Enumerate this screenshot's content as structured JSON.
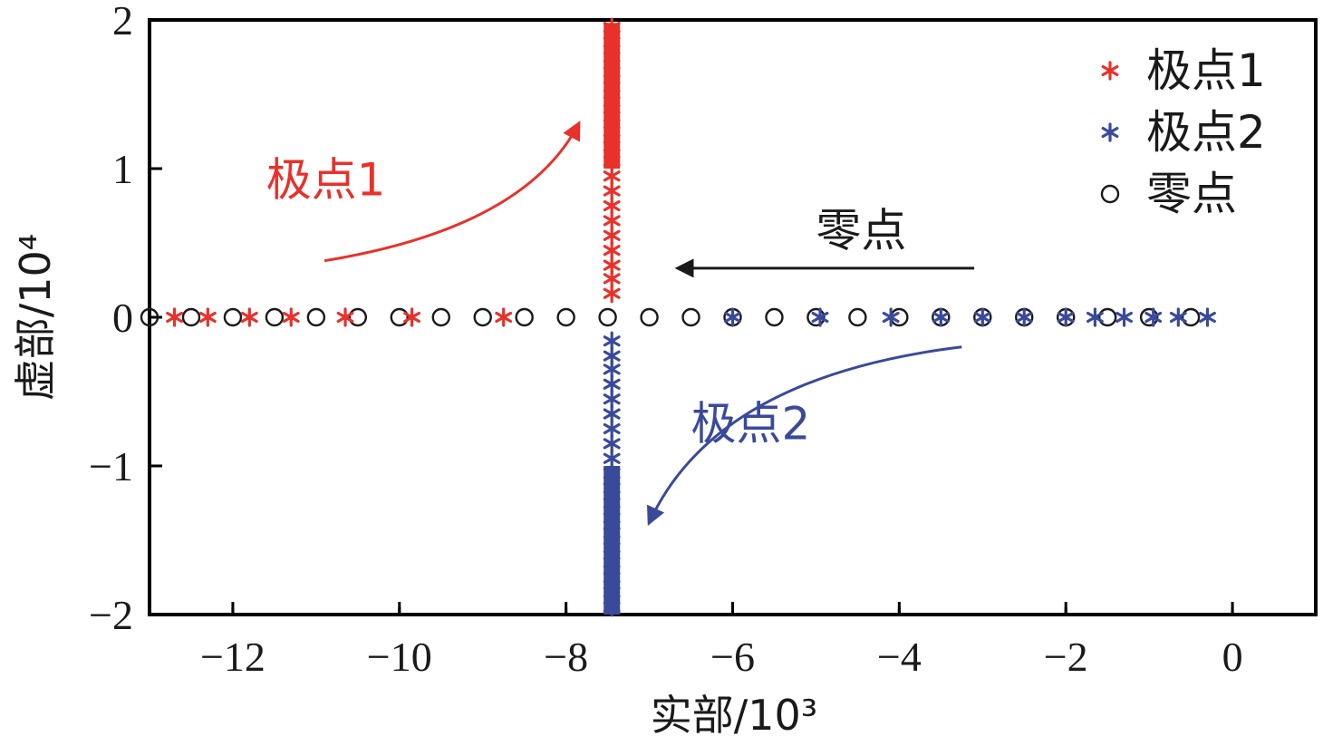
{
  "chart_data": {
    "type": "scatter",
    "xlabel": "实部/10³",
    "ylabel": "虚部/10⁴",
    "xlim": [
      -13,
      1
    ],
    "ylim": [
      -2,
      2
    ],
    "x_ticks": [
      {
        "value": -12,
        "label": "−12"
      },
      {
        "value": -10,
        "label": "−10"
      },
      {
        "value": -8,
        "label": "−8"
      },
      {
        "value": -6,
        "label": "−6"
      },
      {
        "value": -4,
        "label": "−4"
      },
      {
        "value": -2,
        "label": "−2"
      },
      {
        "value": 0,
        "label": "0"
      }
    ],
    "y_ticks": [
      {
        "value": -2,
        "label": "−2"
      },
      {
        "value": -1,
        "label": "−1"
      },
      {
        "value": 0,
        "label": "0"
      },
      {
        "value": 1,
        "label": "1"
      },
      {
        "value": 2,
        "label": "2"
      }
    ],
    "legend_position": "top-right",
    "series": [
      {
        "name": "极点1",
        "marker": "asterisk",
        "color": "#e8312b",
        "points": [
          {
            "x": -12.7,
            "y": 0
          },
          {
            "x": -12.3,
            "y": 0
          },
          {
            "x": -11.8,
            "y": 0
          },
          {
            "x": -11.3,
            "y": 0
          },
          {
            "x": -10.65,
            "y": 0
          },
          {
            "x": -9.85,
            "y": 0
          },
          {
            "x": -8.75,
            "y": 0
          },
          {
            "x": -7.45,
            "y": 0.16
          },
          {
            "x": -7.45,
            "y": 0.26
          },
          {
            "x": -7.45,
            "y": 0.35
          },
          {
            "x": -7.45,
            "y": 0.45
          },
          {
            "x": -7.45,
            "y": 0.55
          },
          {
            "x": -7.45,
            "y": 0.65
          },
          {
            "x": -7.45,
            "y": 0.75
          },
          {
            "x": -7.45,
            "y": 0.85
          },
          {
            "x": -7.45,
            "y": 0.95
          },
          {
            "x": -7.45,
            "y": 1.05
          },
          {
            "x": -7.45,
            "y": 1.15
          },
          {
            "x": -7.45,
            "y": 1.25
          },
          {
            "x": -7.45,
            "y": 1.35
          },
          {
            "x": -7.45,
            "y": 1.45
          },
          {
            "x": -7.45,
            "y": 1.55
          },
          {
            "x": -7.45,
            "y": 1.65
          },
          {
            "x": -7.45,
            "y": 1.75
          },
          {
            "x": -7.45,
            "y": 1.85
          },
          {
            "x": -7.45,
            "y": 1.95
          }
        ]
      },
      {
        "name": "极点2",
        "marker": "asterisk",
        "color": "#3a4a9a",
        "points": [
          {
            "x": -6.0,
            "y": 0
          },
          {
            "x": -4.95,
            "y": 0
          },
          {
            "x": -4.1,
            "y": 0
          },
          {
            "x": -3.5,
            "y": 0
          },
          {
            "x": -3.0,
            "y": 0
          },
          {
            "x": -2.5,
            "y": 0
          },
          {
            "x": -2.0,
            "y": 0
          },
          {
            "x": -1.65,
            "y": 0
          },
          {
            "x": -1.3,
            "y": 0
          },
          {
            "x": -0.95,
            "y": 0
          },
          {
            "x": -0.65,
            "y": 0
          },
          {
            "x": -0.3,
            "y": 0
          },
          {
            "x": -7.45,
            "y": -0.16
          },
          {
            "x": -7.45,
            "y": -0.26
          },
          {
            "x": -7.45,
            "y": -0.35
          },
          {
            "x": -7.45,
            "y": -0.45
          },
          {
            "x": -7.45,
            "y": -0.55
          },
          {
            "x": -7.45,
            "y": -0.65
          },
          {
            "x": -7.45,
            "y": -0.75
          },
          {
            "x": -7.45,
            "y": -0.85
          },
          {
            "x": -7.45,
            "y": -0.95
          },
          {
            "x": -7.45,
            "y": -1.05
          },
          {
            "x": -7.45,
            "y": -1.15
          },
          {
            "x": -7.45,
            "y": -1.25
          },
          {
            "x": -7.45,
            "y": -1.35
          },
          {
            "x": -7.45,
            "y": -1.45
          },
          {
            "x": -7.45,
            "y": -1.55
          },
          {
            "x": -7.45,
            "y": -1.65
          },
          {
            "x": -7.45,
            "y": -1.75
          },
          {
            "x": -7.45,
            "y": -1.85
          },
          {
            "x": -7.45,
            "y": -1.95
          }
        ]
      },
      {
        "name": "零点",
        "marker": "circle",
        "color": "#1a1a1a",
        "points": [
          {
            "x": -13.0,
            "y": 0
          },
          {
            "x": -12.5,
            "y": 0
          },
          {
            "x": -12.0,
            "y": 0
          },
          {
            "x": -11.5,
            "y": 0
          },
          {
            "x": -11.0,
            "y": 0
          },
          {
            "x": -10.5,
            "y": 0
          },
          {
            "x": -10.0,
            "y": 0
          },
          {
            "x": -9.5,
            "y": 0
          },
          {
            "x": -9.0,
            "y": 0
          },
          {
            "x": -8.5,
            "y": 0
          },
          {
            "x": -8.0,
            "y": 0
          },
          {
            "x": -7.5,
            "y": 0
          },
          {
            "x": -7.0,
            "y": 0
          },
          {
            "x": -6.5,
            "y": 0
          },
          {
            "x": -6.0,
            "y": 0
          },
          {
            "x": -5.5,
            "y": 0
          },
          {
            "x": -5.0,
            "y": 0
          },
          {
            "x": -4.5,
            "y": 0
          },
          {
            "x": -4.0,
            "y": 0
          },
          {
            "x": -3.5,
            "y": 0
          },
          {
            "x": -3.0,
            "y": 0
          },
          {
            "x": -2.5,
            "y": 0
          },
          {
            "x": -2.0,
            "y": 0
          },
          {
            "x": -1.5,
            "y": 0
          },
          {
            "x": -1.0,
            "y": 0
          },
          {
            "x": -0.5,
            "y": 0
          }
        ]
      }
    ],
    "annotations": [
      {
        "label": "极点1",
        "color": "#e8312b",
        "text_at": {
          "x": -11.6,
          "y": 0.82
        },
        "arrow_path": [
          {
            "x": -10.9,
            "y": 0.38
          },
          {
            "x": -8.5,
            "y": 0.6
          },
          {
            "x": -7.85,
            "y": 1.3
          }
        ]
      },
      {
        "label": "极点2",
        "color": "#3a4a9a",
        "text_at": {
          "x": -6.5,
          "y": -0.82
        },
        "arrow_path": [
          {
            "x": -3.25,
            "y": -0.2
          },
          {
            "x": -6.2,
            "y": -0.4
          },
          {
            "x": -7.0,
            "y": -1.38
          }
        ]
      },
      {
        "label": "零点",
        "color": "#1a1a1a",
        "text_at": {
          "x": -5.0,
          "y": 0.48
        },
        "arrow_path": [
          {
            "x": -3.1,
            "y": 0.33
          },
          {
            "x": -6.65,
            "y": 0.33
          }
        ]
      }
    ]
  }
}
